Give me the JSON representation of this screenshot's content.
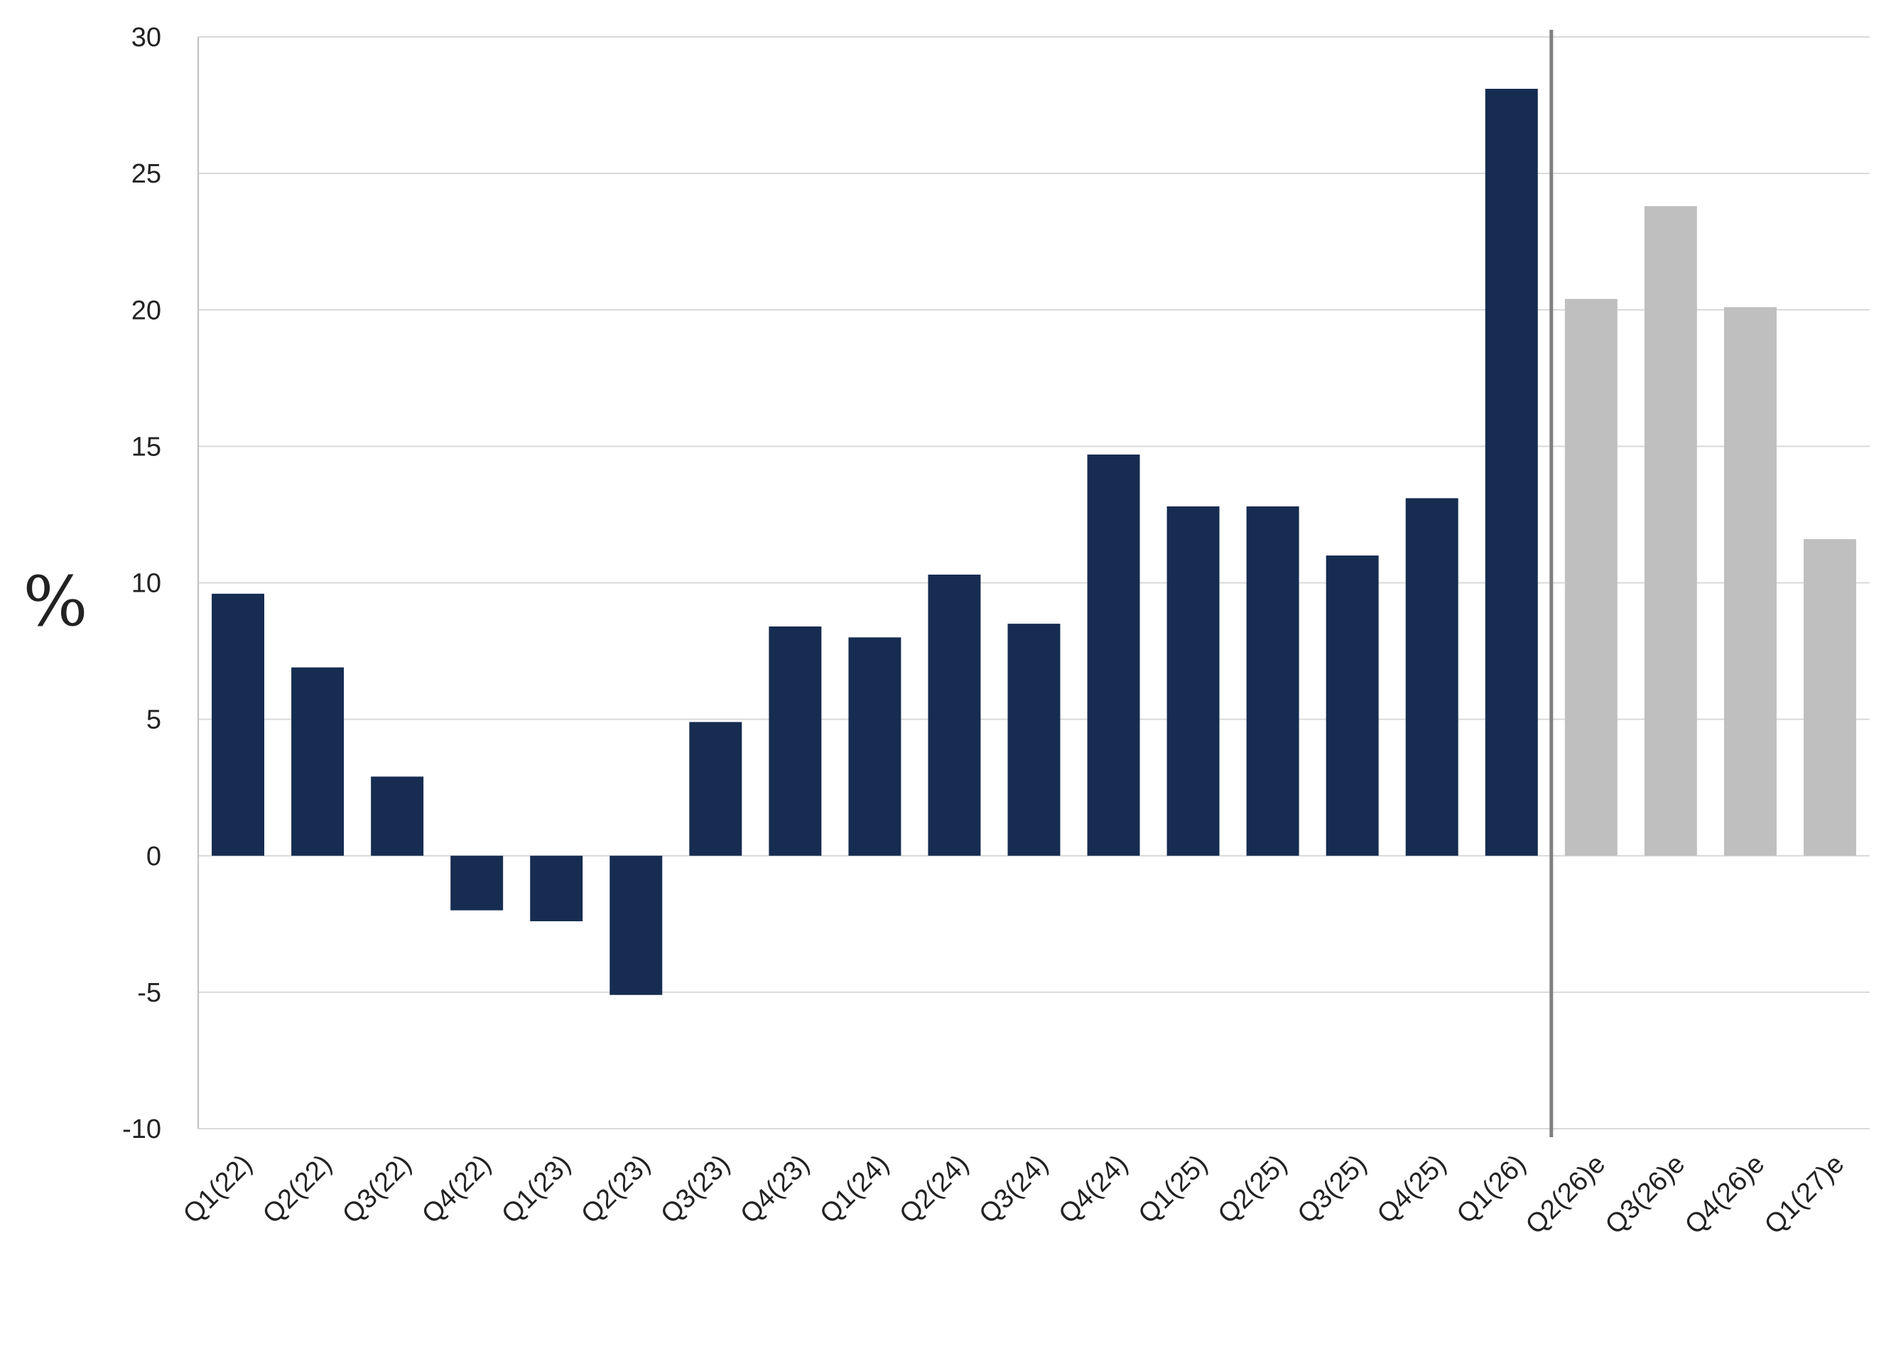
{
  "chart_data": {
    "type": "bar",
    "ylabel": "%",
    "ylim": [
      -10,
      30
    ],
    "yticks": [
      30,
      25,
      20,
      15,
      10,
      5,
      0,
      -5,
      -10
    ],
    "grid": true,
    "categories": [
      "Q1(22)",
      "Q2(22)",
      "Q3(22)",
      "Q4(22)",
      "Q1(23)",
      "Q2(23)",
      "Q3(23)",
      "Q4(23)",
      "Q1(24)",
      "Q2(24)",
      "Q3(24)",
      "Q4(24)",
      "Q1(25)",
      "Q2(25)",
      "Q3(25)",
      "Q4(25)",
      "Q1(26)",
      "Q2(26)e",
      "Q3(26)e",
      "Q4(26)e",
      "Q1(27)e"
    ],
    "values": [
      9.6,
      6.9,
      2.9,
      -2.0,
      -2.4,
      -5.1,
      4.9,
      8.4,
      8.0,
      10.3,
      8.5,
      14.7,
      12.8,
      12.8,
      11.0,
      13.1,
      28.1,
      20.4,
      23.8,
      20.1,
      11.6
    ],
    "forecast_start_index": 17,
    "colors": {
      "actual": "#162c51",
      "forecast": "#bfbfbf",
      "grid": "#d9d9d9",
      "divider": "#808080",
      "axis": "#bfbfbf"
    }
  }
}
